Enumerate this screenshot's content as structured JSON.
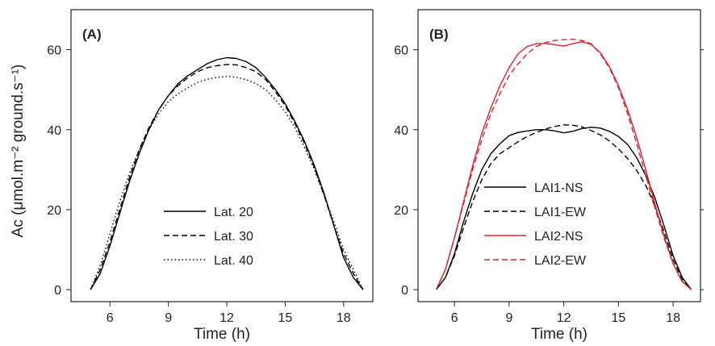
{
  "chart_data": [
    {
      "type": "line",
      "panel_label": "(A)",
      "xlabel": "Time (h)",
      "ylabel": "Ac (μmol.m⁻² ground.s⁻¹)",
      "xlim": [
        4,
        19.5
      ],
      "ylim": [
        -3,
        70
      ],
      "xticks": [
        6,
        9,
        12,
        15,
        18
      ],
      "yticks": [
        0,
        20,
        40,
        60
      ],
      "legend_position": "lower-center",
      "series": [
        {
          "name": "Lat. 20",
          "color": "#000000",
          "dash": "solid",
          "x": [
            5,
            5.5,
            6,
            6.5,
            7,
            7.5,
            8,
            8.5,
            9,
            9.5,
            10,
            10.5,
            11,
            11.5,
            12,
            12.5,
            13,
            13.5,
            14,
            14.5,
            15,
            15.5,
            16,
            16.5,
            17,
            17.5,
            18,
            18.5,
            19
          ],
          "y": [
            0,
            4,
            11,
            19,
            27,
            34,
            40,
            45,
            48.5,
            51.5,
            53.5,
            55,
            56.5,
            57.5,
            58,
            57.8,
            57,
            55.5,
            53,
            50,
            46.5,
            42,
            37,
            31,
            24,
            16,
            8,
            3,
            0
          ]
        },
        {
          "name": "Lat. 30",
          "color": "#000000",
          "dash": "dashed",
          "x": [
            5,
            5.5,
            6,
            6.5,
            7,
            7.5,
            8,
            8.5,
            9,
            9.5,
            10,
            10.5,
            11,
            11.5,
            12,
            12.5,
            13,
            13.5,
            14,
            14.5,
            15,
            15.5,
            16,
            16.5,
            17,
            17.5,
            18,
            18.5,
            19
          ],
          "y": [
            0,
            5,
            12,
            20,
            28,
            35,
            40.5,
            45,
            48.5,
            51,
            53,
            54.5,
            55.5,
            56,
            56.3,
            56.2,
            55.5,
            54.5,
            52.5,
            49.5,
            46,
            41.5,
            36.5,
            30.5,
            23.5,
            16,
            9,
            4,
            0
          ]
        },
        {
          "name": "Lat. 40",
          "color": "#000000",
          "dash": "dotted",
          "x": [
            5,
            5.5,
            6,
            6.5,
            7,
            7.5,
            8,
            8.5,
            9,
            9.5,
            10,
            10.5,
            11,
            11.5,
            12,
            12.5,
            13,
            13.5,
            14,
            14.5,
            15,
            15.5,
            16,
            16.5,
            17,
            17.5,
            18,
            18.5,
            19
          ],
          "y": [
            0,
            6,
            14,
            22,
            29,
            35,
            40,
            44,
            47,
            49,
            50.5,
            51.8,
            52.6,
            53.1,
            53.3,
            53.1,
            52.5,
            51.5,
            50,
            47.5,
            44.5,
            40.5,
            35.5,
            30,
            23.5,
            17,
            10,
            5,
            0
          ]
        }
      ]
    },
    {
      "type": "line",
      "panel_label": "(B)",
      "xlabel": "Time (h)",
      "ylabel": "",
      "xlim": [
        4,
        19.5
      ],
      "ylim": [
        -3,
        70
      ],
      "xticks": [
        6,
        9,
        12,
        15,
        18
      ],
      "yticks": [
        0,
        20,
        40,
        60
      ],
      "legend_position": "lower-center",
      "series": [
        {
          "name": "LAI1-NS",
          "color": "#000000",
          "dash": "solid",
          "x": [
            5,
            5.5,
            6,
            6.5,
            7,
            7.5,
            8,
            8.5,
            9,
            9.5,
            10,
            10.5,
            11,
            11.5,
            12,
            12.5,
            13,
            13.5,
            14,
            14.5,
            15,
            15.5,
            16,
            16.5,
            17,
            17.5,
            18,
            18.5,
            19
          ],
          "y": [
            0,
            3,
            9,
            17,
            24,
            30,
            34,
            36.5,
            38.5,
            39.3,
            39.7,
            40,
            40,
            39.7,
            39.2,
            39.6,
            40.3,
            40.6,
            40.4,
            39.6,
            38.3,
            36.3,
            33,
            28.5,
            23,
            16,
            8.5,
            3,
            0
          ]
        },
        {
          "name": "LAI1-EW",
          "color": "#000000",
          "dash": "dashed",
          "x": [
            5,
            5.5,
            6,
            6.5,
            7,
            7.5,
            8,
            8.5,
            9,
            9.5,
            10,
            10.5,
            11,
            11.5,
            12,
            12.5,
            13,
            13.5,
            14,
            14.5,
            15,
            15.5,
            16,
            16.5,
            17,
            17.5,
            18,
            18.5,
            19
          ],
          "y": [
            0,
            3,
            8.5,
            15.5,
            22,
            27.5,
            31.5,
            34,
            35.5,
            37,
            38.3,
            39.3,
            40.2,
            40.8,
            41.2,
            41.1,
            40.7,
            39.8,
            38.7,
            37.2,
            35.2,
            32.8,
            29.8,
            26,
            21,
            14.5,
            7.5,
            2.5,
            0
          ]
        },
        {
          "name": "LAI2-NS",
          "color": "#e0202a",
          "dash": "solid",
          "x": [
            5,
            5.5,
            6,
            6.5,
            7,
            7.5,
            8,
            8.5,
            9,
            9.5,
            10,
            10.5,
            11,
            11.5,
            12,
            12.5,
            13,
            13.5,
            14,
            14.5,
            15,
            15.5,
            16,
            16.5,
            17,
            17.5,
            18,
            18.5,
            19
          ],
          "y": [
            0,
            5,
            13,
            22,
            31,
            39,
            45.5,
            51,
            55.5,
            59,
            60.8,
            61.5,
            61.6,
            61.2,
            60.9,
            61.5,
            62,
            61.3,
            59.3,
            55.8,
            51,
            45,
            38,
            30,
            21.5,
            13.5,
            6.5,
            2,
            0
          ]
        },
        {
          "name": "LAI2-EW",
          "color": "#e0202a",
          "dash": "dashed",
          "x": [
            5,
            5.5,
            6,
            6.5,
            7,
            7.5,
            8,
            8.5,
            9,
            9.5,
            10,
            10.5,
            11,
            11.5,
            12,
            12.5,
            13,
            13.5,
            14,
            14.5,
            15,
            15.5,
            16,
            16.5,
            17,
            17.5,
            18,
            18.5,
            19
          ],
          "y": [
            0,
            5,
            13,
            21.5,
            30,
            37.5,
            44,
            49,
            53.5,
            56.5,
            59,
            60.8,
            61.8,
            62.3,
            62.5,
            62.6,
            62.3,
            61.5,
            59,
            55.5,
            50.5,
            44,
            36.5,
            28.5,
            20.5,
            13,
            6.5,
            2,
            0
          ]
        }
      ]
    }
  ]
}
